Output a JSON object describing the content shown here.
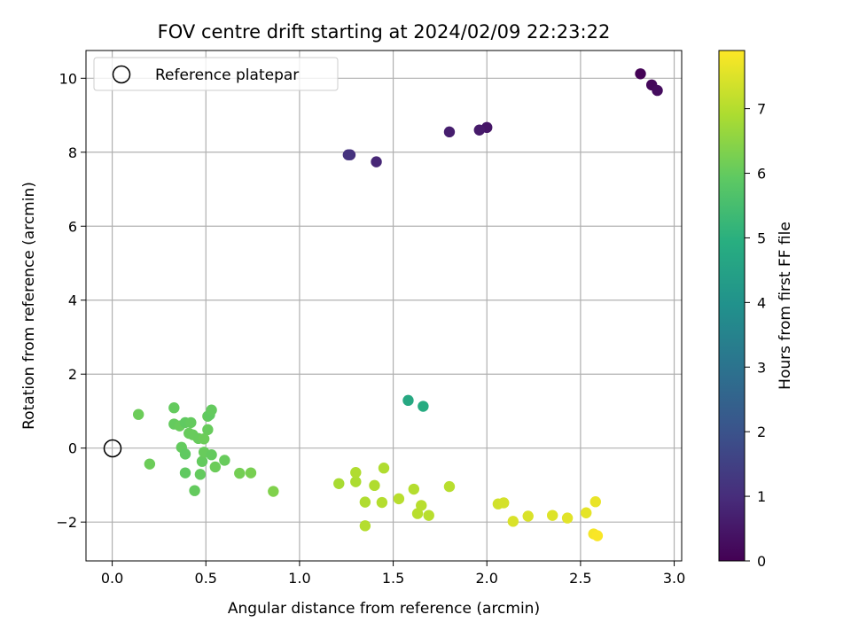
{
  "chart_data": {
    "type": "scatter",
    "title": "FOV centre drift starting at 2024/02/09 22:23:22",
    "xlabel": "Angular distance from reference (arcmin)",
    "ylabel": "Rotation from reference (arcmin)",
    "xlim": [
      -0.14,
      3.04
    ],
    "ylim": [
      -3.05,
      10.75
    ],
    "xticks": [
      0.0,
      0.5,
      1.0,
      1.5,
      2.0,
      2.5,
      3.0
    ],
    "xtick_labels": [
      "0.0",
      "0.5",
      "1.0",
      "1.5",
      "2.0",
      "2.5",
      "3.0"
    ],
    "yticks": [
      -2,
      0,
      2,
      4,
      6,
      8,
      10
    ],
    "ytick_labels": [
      "−2",
      "0",
      "2",
      "4",
      "6",
      "8",
      "10"
    ],
    "grid": true,
    "legend": {
      "position": "top-left",
      "entries": [
        "Reference platepar"
      ]
    },
    "reference_point": {
      "x": 0.0,
      "y": 0.0
    },
    "colorbar": {
      "label": "Hours from first FF file",
      "colormap": "viridis",
      "range": [
        0,
        7.9
      ],
      "ticks": [
        0,
        1,
        2,
        3,
        4,
        5,
        6,
        7
      ],
      "tick_labels": [
        "0",
        "1",
        "2",
        "3",
        "4",
        "5",
        "6",
        "7"
      ]
    },
    "points": [
      {
        "x": 2.82,
        "y": 10.12,
        "c": 0.05
      },
      {
        "x": 2.88,
        "y": 9.82,
        "c": 0.15
      },
      {
        "x": 2.91,
        "y": 9.67,
        "c": 0.25
      },
      {
        "x": 2.0,
        "y": 8.67,
        "c": 0.45
      },
      {
        "x": 1.96,
        "y": 8.6,
        "c": 0.55
      },
      {
        "x": 1.8,
        "y": 8.55,
        "c": 0.65
      },
      {
        "x": 1.41,
        "y": 7.74,
        "c": 0.85
      },
      {
        "x": 1.27,
        "y": 7.93,
        "c": 1.05
      },
      {
        "x": 1.26,
        "y": 7.93,
        "c": 1.15
      },
      {
        "x": 1.58,
        "y": 1.29,
        "c": 4.75
      },
      {
        "x": 1.66,
        "y": 1.13,
        "c": 4.85
      },
      {
        "x": 0.14,
        "y": 0.91,
        "c": 6.1
      },
      {
        "x": 0.2,
        "y": -0.43,
        "c": 6.1
      },
      {
        "x": 0.33,
        "y": 1.09,
        "c": 6.0
      },
      {
        "x": 0.33,
        "y": 0.65,
        "c": 6.0
      },
      {
        "x": 0.36,
        "y": 0.6,
        "c": 6.05
      },
      {
        "x": 0.37,
        "y": 0.02,
        "c": 6.0
      },
      {
        "x": 0.39,
        "y": -0.16,
        "c": 5.95
      },
      {
        "x": 0.39,
        "y": 0.69,
        "c": 5.95
      },
      {
        "x": 0.39,
        "y": -0.67,
        "c": 5.95
      },
      {
        "x": 0.42,
        "y": 0.69,
        "c": 6.0
      },
      {
        "x": 0.41,
        "y": 0.4,
        "c": 6.05
      },
      {
        "x": 0.43,
        "y": 0.36,
        "c": 6.05
      },
      {
        "x": 0.44,
        "y": -1.15,
        "c": 6.0
      },
      {
        "x": 0.46,
        "y": 0.26,
        "c": 6.05
      },
      {
        "x": 0.47,
        "y": -0.71,
        "c": 6.0
      },
      {
        "x": 0.48,
        "y": -0.36,
        "c": 6.0
      },
      {
        "x": 0.49,
        "y": 0.25,
        "c": 6.1
      },
      {
        "x": 0.49,
        "y": -0.11,
        "c": 6.05
      },
      {
        "x": 0.51,
        "y": 0.5,
        "c": 6.05
      },
      {
        "x": 0.51,
        "y": 0.86,
        "c": 6.0
      },
      {
        "x": 0.52,
        "y": 0.9,
        "c": 5.95
      },
      {
        "x": 0.53,
        "y": 1.03,
        "c": 6.0
      },
      {
        "x": 0.53,
        "y": -0.18,
        "c": 6.0
      },
      {
        "x": 0.55,
        "y": -0.51,
        "c": 6.1
      },
      {
        "x": 0.6,
        "y": -0.33,
        "c": 6.05
      },
      {
        "x": 0.68,
        "y": -0.68,
        "c": 6.2
      },
      {
        "x": 0.74,
        "y": -0.67,
        "c": 6.25
      },
      {
        "x": 0.86,
        "y": -1.17,
        "c": 6.35
      },
      {
        "x": 1.21,
        "y": -0.96,
        "c": 6.85
      },
      {
        "x": 1.3,
        "y": -0.91,
        "c": 6.9
      },
      {
        "x": 1.3,
        "y": -0.66,
        "c": 6.95
      },
      {
        "x": 1.35,
        "y": -1.46,
        "c": 6.95
      },
      {
        "x": 1.35,
        "y": -2.1,
        "c": 7.0
      },
      {
        "x": 1.4,
        "y": -1.01,
        "c": 6.95
      },
      {
        "x": 1.44,
        "y": -1.47,
        "c": 7.0
      },
      {
        "x": 1.45,
        "y": -0.54,
        "c": 6.95
      },
      {
        "x": 1.53,
        "y": -1.37,
        "c": 7.05
      },
      {
        "x": 1.61,
        "y": -1.11,
        "c": 7.0
      },
      {
        "x": 1.63,
        "y": -1.77,
        "c": 7.05
      },
      {
        "x": 1.65,
        "y": -1.55,
        "c": 7.05
      },
      {
        "x": 1.69,
        "y": -1.82,
        "c": 7.05
      },
      {
        "x": 1.8,
        "y": -1.04,
        "c": 7.05
      },
      {
        "x": 2.06,
        "y": -1.51,
        "c": 7.35
      },
      {
        "x": 2.09,
        "y": -1.48,
        "c": 7.4
      },
      {
        "x": 2.14,
        "y": -1.98,
        "c": 7.45
      },
      {
        "x": 2.22,
        "y": -1.84,
        "c": 7.45
      },
      {
        "x": 2.35,
        "y": -1.82,
        "c": 7.5
      },
      {
        "x": 2.43,
        "y": -1.89,
        "c": 7.55
      },
      {
        "x": 2.53,
        "y": -1.75,
        "c": 7.6
      },
      {
        "x": 2.58,
        "y": -1.45,
        "c": 7.65
      },
      {
        "x": 2.57,
        "y": -2.32,
        "c": 7.8
      },
      {
        "x": 2.59,
        "y": -2.37,
        "c": 7.85
      }
    ]
  }
}
